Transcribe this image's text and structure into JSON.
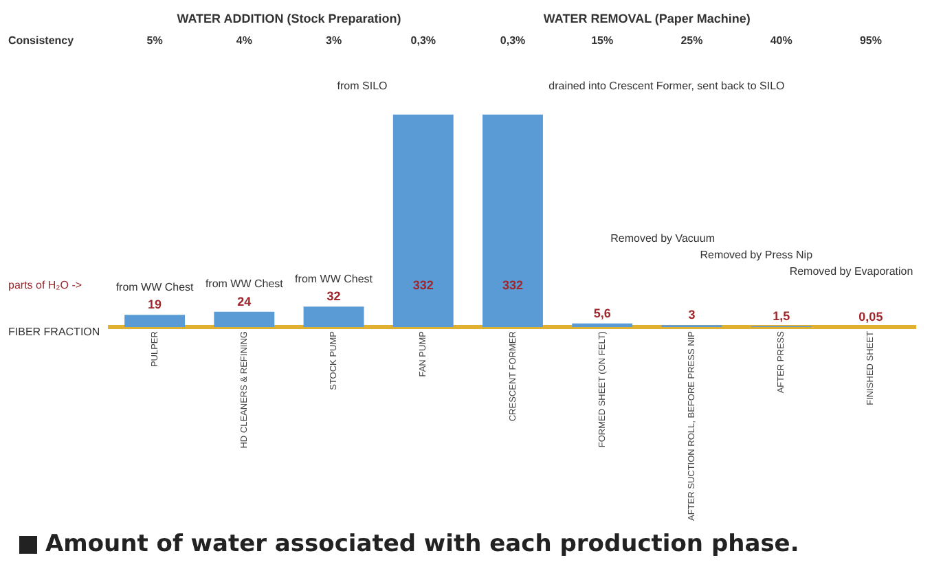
{
  "chart_data": {
    "type": "bar",
    "title": "Amount of water associated with each production phase.",
    "categories": [
      "PULPER",
      "HD CLEANERS & REFINING",
      "STOCK PUMP",
      "FAN PUMP",
      "CRESCENT FORMER",
      "FORMED SHEET (ON FELT)",
      "AFTER SUCTION ROLL, BEFORE PRESS NIP",
      "AFTER PRESS",
      "FINISHED SHEET"
    ],
    "values": [
      19,
      24,
      32,
      332,
      332,
      5.6,
      3,
      1.5,
      0.05
    ],
    "color": "#5b9bd5",
    "value_labels": [
      "19",
      "24",
      "32",
      "332",
      "332",
      "5,6",
      "3",
      "1,5",
      "0,05"
    ],
    "tick_labels": "x",
    "grid": false,
    "legend": false,
    "annotations": [
      "WATER ADDITION (Stock Preparation)",
      "WATER REMOVAL (Paper Machine)",
      "Consistency",
      "parts of H₂O ->",
      "FIBER FRACTION",
      "5%",
      "4%",
      "3%",
      "0,3%",
      "0,3%",
      "15%",
      "25%",
      "40%",
      "95%",
      "from SILO",
      "drained into Crescent Former, sent back to SILO",
      "Removed by Vacuum",
      "Removed by Press Nip",
      "Removed by Evaporation",
      {
        "text": "from WW Chest",
        "x": "PULPER",
        "y": 19
      },
      {
        "text": "from WW Chest",
        "x": "HD CLEANERS & REFINING",
        "y": 24
      },
      {
        "text": "from WW Chest",
        "x": "STOCK PUMP",
        "y": 32
      }
    ]
  }
}
